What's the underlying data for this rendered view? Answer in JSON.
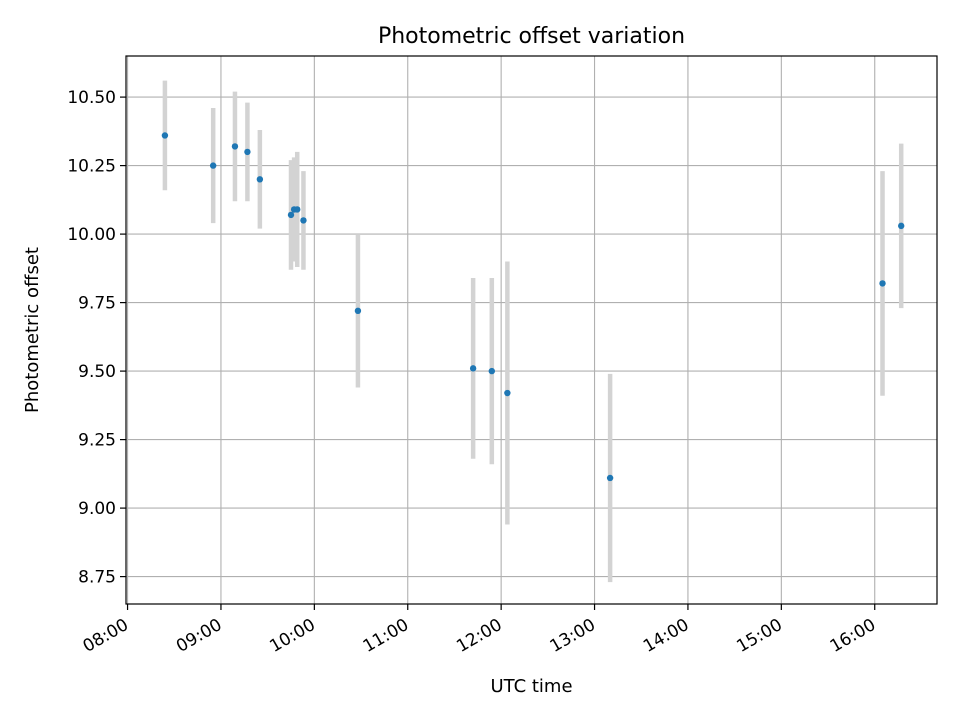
{
  "chart_data": {
    "type": "scatter",
    "title": "Photometric offset variation",
    "xlabel": "UTC time",
    "ylabel": "Photometric offset",
    "x_axis_type": "time",
    "xlim": [
      "07:59",
      "16:40"
    ],
    "ylim": [
      8.65,
      10.65
    ],
    "x_ticks": [
      "08:00",
      "09:00",
      "10:00",
      "11:00",
      "12:00",
      "13:00",
      "14:00",
      "15:00",
      "16:00"
    ],
    "y_ticks": [
      "8.75",
      "9.00",
      "9.25",
      "9.50",
      "9.75",
      "10.00",
      "10.25",
      "10.50"
    ],
    "grid": true,
    "legend": "none",
    "colors": {
      "marker": "#1f77b4",
      "errorbar": "#d3d3d3",
      "grid": "#b0b0b0"
    },
    "series": [
      {
        "points": [
          {
            "x": "08:24",
            "y": 10.36,
            "err": 0.2
          },
          {
            "x": "08:55",
            "y": 10.25,
            "err": 0.21
          },
          {
            "x": "09:09",
            "y": 10.32,
            "err": 0.2
          },
          {
            "x": "09:17",
            "y": 10.3,
            "err": 0.18
          },
          {
            "x": "09:25",
            "y": 10.2,
            "err": 0.18
          },
          {
            "x": "09:45",
            "y": 10.07,
            "err": 0.2
          },
          {
            "x": "09:47",
            "y": 10.09,
            "err": 0.19
          },
          {
            "x": "09:49",
            "y": 10.09,
            "err": 0.21
          },
          {
            "x": "09:53",
            "y": 10.05,
            "err": 0.18
          },
          {
            "x": "10:28",
            "y": 9.72,
            "err": 0.28
          },
          {
            "x": "11:42",
            "y": 9.51,
            "err": 0.33
          },
          {
            "x": "11:54",
            "y": 9.5,
            "err": 0.34
          },
          {
            "x": "12:04",
            "y": 9.42,
            "err": 0.48
          },
          {
            "x": "13:10",
            "y": 9.11,
            "err": 0.38
          },
          {
            "x": "16:05",
            "y": 9.82,
            "err": 0.41
          },
          {
            "x": "16:17",
            "y": 10.03,
            "err": 0.3
          }
        ]
      }
    ]
  }
}
